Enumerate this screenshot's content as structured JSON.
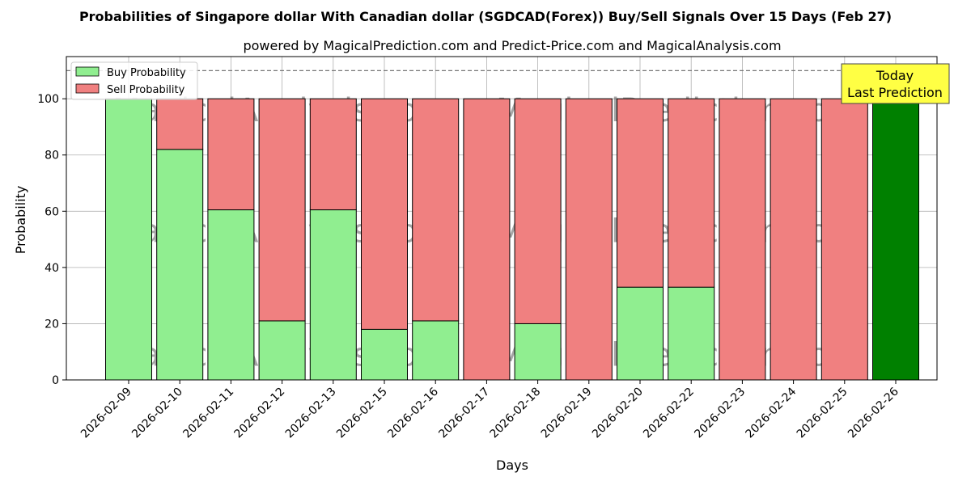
{
  "chart_data": {
    "type": "bar",
    "stacked": true,
    "title": "Probabilities of Singapore dollar With Canadian dollar (SGDCAD(Forex)) Buy/Sell Signals Over 15 Days (Feb 27)",
    "subtitle": "powered by MagicalPrediction.com and Predict-Price.com and MagicalAnalysis.com",
    "xlabel": "Days",
    "ylabel": "Probability",
    "ylim": [
      0,
      115
    ],
    "yticks": [
      0,
      20,
      40,
      60,
      80,
      100
    ],
    "grid": true,
    "legend_position": "top-left",
    "reference_line": 110,
    "categories": [
      "2026-02-09",
      "2026-02-10",
      "2026-02-11",
      "2026-02-12",
      "2026-02-13",
      "2026-02-15",
      "2026-02-16",
      "2026-02-17",
      "2026-02-18",
      "2026-02-19",
      "2026-02-20",
      "2026-02-22",
      "2026-02-23",
      "2026-02-24",
      "2026-02-25",
      "2026-02-26"
    ],
    "series": [
      {
        "name": "Buy Probability",
        "color": "#90ee90",
        "values": [
          100,
          82,
          60.5,
          21,
          60.5,
          18,
          21,
          0,
          20,
          0,
          33,
          33,
          0,
          0,
          0,
          100
        ]
      },
      {
        "name": "Sell Probability",
        "color": "#f08080",
        "values": [
          0,
          18,
          39.5,
          79,
          39.5,
          82,
          79,
          100,
          80,
          100,
          67,
          67,
          100,
          100,
          100,
          0
        ]
      }
    ],
    "highlight": {
      "index": 15,
      "color": "#008000"
    },
    "annotation": {
      "line1": "Today",
      "line2": "Last Prediction",
      "background": "#ffff44"
    },
    "watermarks": [
      "MagicalAnalysis.com",
      "MagicalPrediction.com"
    ]
  }
}
